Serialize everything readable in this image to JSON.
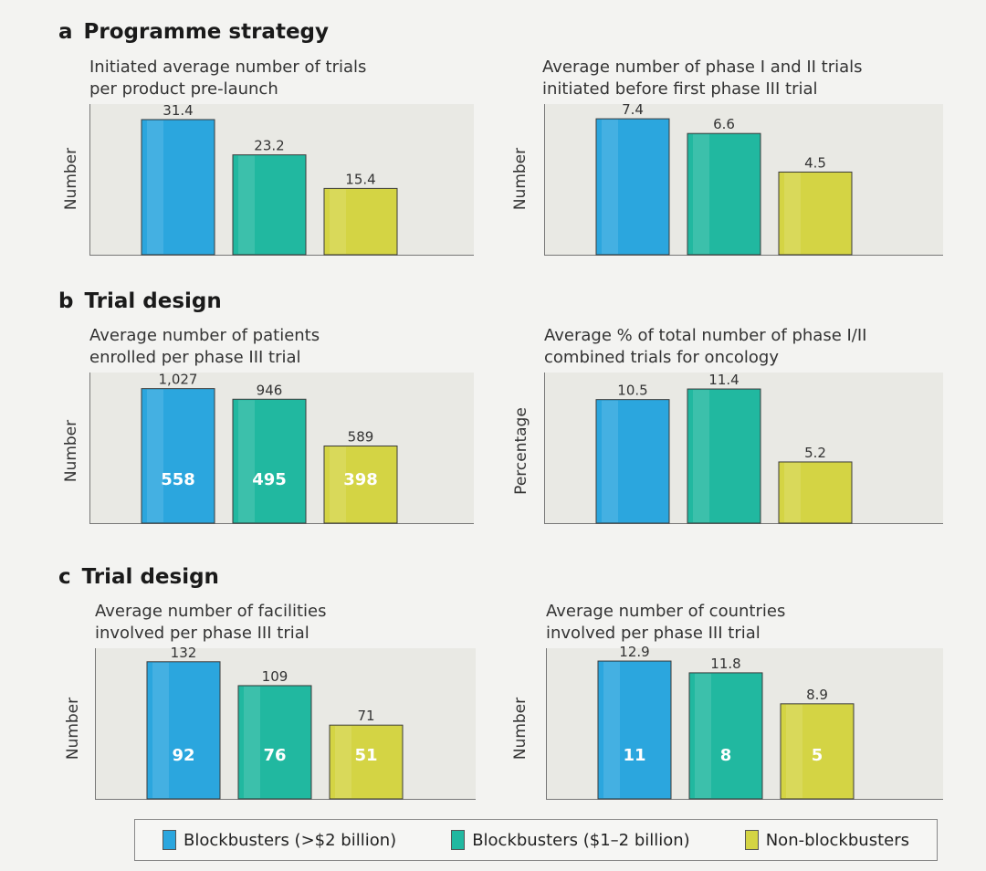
{
  "colors": {
    "blockbuster_gt2": "#2ba6de",
    "blockbuster_1_2": "#21b8a0",
    "non_blockbuster": "#d4d444"
  },
  "sections": [
    {
      "letter": "a",
      "title": "Programme strategy"
    },
    {
      "letter": "b",
      "title": "Trial design"
    },
    {
      "letter": "c",
      "title": "Trial design"
    }
  ],
  "legend": [
    {
      "label": "Blockbusters (>$2 billion)",
      "color": "#2ba6de"
    },
    {
      "label": "Blockbusters ($1–2 billion)",
      "color": "#21b8a0"
    },
    {
      "label": "Non-blockbusters",
      "color": "#d4d444"
    }
  ],
  "chart_data": [
    {
      "type": "bar",
      "title_lines": [
        "Initiated average number of trials",
        "per product pre-launch"
      ],
      "ylabel": "Number",
      "categories": [
        "Blockbusters (>$2 billion)",
        "Blockbusters ($1–2 billion)",
        "Non-blockbusters"
      ],
      "values": [
        31.4,
        23.2,
        15.4
      ],
      "value_labels": [
        "31.4",
        "23.2",
        "15.4"
      ],
      "ylim": [
        0,
        35
      ]
    },
    {
      "type": "bar",
      "title_lines": [
        "Average number of phase I and II trials",
        "initiated before first phase III trial"
      ],
      "ylabel": "Number",
      "categories": [
        "Blockbusters (>$2 billion)",
        "Blockbusters ($1–2 billion)",
        "Non-blockbusters"
      ],
      "values": [
        7.4,
        6.6,
        4.5
      ],
      "value_labels": [
        "7.4",
        "6.6",
        "4.5"
      ],
      "ylim": [
        0,
        8.2
      ]
    },
    {
      "type": "bar",
      "title_lines": [
        "Average number of patients",
        "enrolled per phase III trial"
      ],
      "ylabel": "Number",
      "categories": [
        "Blockbusters (>$2 billion)",
        "Blockbusters ($1–2 billion)",
        "Non-blockbusters"
      ],
      "values": [
        1027,
        946,
        589
      ],
      "value_labels": [
        "1,027",
        "946",
        "589"
      ],
      "inner_values": [
        "558",
        "495",
        "398"
      ],
      "ylim": [
        0,
        1150
      ]
    },
    {
      "type": "bar",
      "title_lines": [
        "Average % of total number of phase I/II",
        "combined trials for oncology"
      ],
      "ylabel": "Percentage",
      "categories": [
        "Blockbusters (>$2 billion)",
        "Blockbusters ($1–2 billion)",
        "Non-blockbusters"
      ],
      "values": [
        10.5,
        11.4,
        5.2
      ],
      "value_labels": [
        "10.5",
        "11.4",
        "5.2"
      ],
      "ylim": [
        0,
        12.8
      ]
    },
    {
      "type": "bar",
      "title_lines": [
        "Average number of facilities",
        "involved per phase III trial"
      ],
      "ylabel": "Number",
      "categories": [
        "Blockbusters (>$2 billion)",
        "Blockbusters ($1–2 billion)",
        "Non-blockbusters"
      ],
      "values": [
        132,
        109,
        71
      ],
      "value_labels": [
        "132",
        "109",
        "71"
      ],
      "inner_values": [
        "92",
        "76",
        "51"
      ],
      "ylim": [
        0,
        145
      ]
    },
    {
      "type": "bar",
      "title_lines": [
        "Average number of countries",
        "involved per phase III trial"
      ],
      "ylabel": "Number",
      "categories": [
        "Blockbusters (>$2 billion)",
        "Blockbusters ($1–2 billion)",
        "Non-blockbusters"
      ],
      "values": [
        12.9,
        11.8,
        8.9
      ],
      "value_labels": [
        "12.9",
        "11.8",
        "8.9"
      ],
      "inner_values": [
        "11",
        "8",
        "5"
      ],
      "ylim": [
        0,
        14.1
      ]
    }
  ]
}
